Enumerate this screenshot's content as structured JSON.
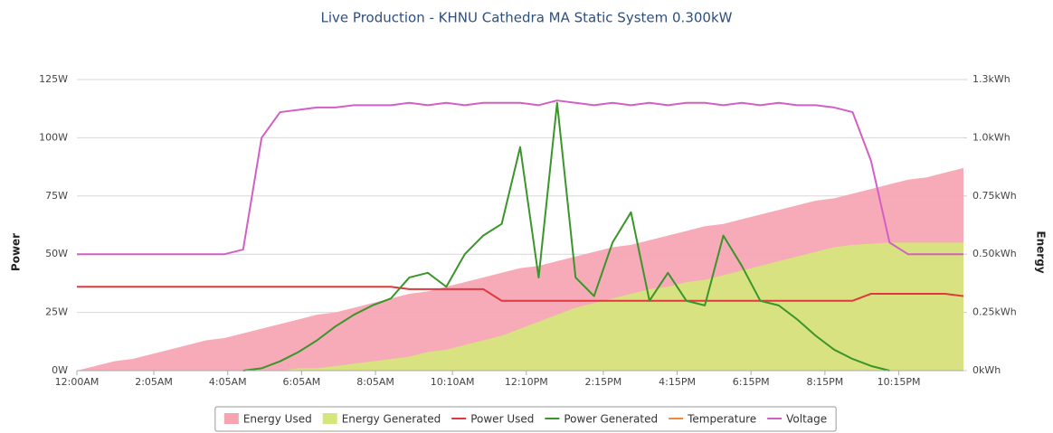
{
  "chart_data": {
    "type": "line",
    "title": "Live Production - KHNU Cathedra MA Static System 0.300kW",
    "y_label": "Power",
    "y2_label": "Energy",
    "x": [
      0,
      30,
      60,
      90,
      120,
      150,
      180,
      210,
      240,
      270,
      300,
      330,
      360,
      390,
      420,
      450,
      480,
      510,
      540,
      570,
      600,
      630,
      660,
      690,
      720,
      750,
      780,
      810,
      840,
      870,
      900,
      930,
      960,
      990,
      1020,
      1050,
      1080,
      1110,
      1140,
      1170,
      1200,
      1230,
      1260,
      1290,
      1320,
      1350,
      1380,
      1410,
      1440
    ],
    "xlim": [
      0,
      1440
    ],
    "xticks": [
      {
        "value": 0,
        "label": "12:00AM"
      },
      {
        "value": 125,
        "label": "2:05AM"
      },
      {
        "value": 245,
        "label": "4:05AM"
      },
      {
        "value": 365,
        "label": "6:05AM"
      },
      {
        "value": 485,
        "label": "8:05AM"
      },
      {
        "value": 610,
        "label": "10:10AM"
      },
      {
        "value": 730,
        "label": "12:10PM"
      },
      {
        "value": 855,
        "label": "2:15PM"
      },
      {
        "value": 975,
        "label": "4:15PM"
      },
      {
        "value": 1095,
        "label": "6:15PM"
      },
      {
        "value": 1215,
        "label": "8:15PM"
      },
      {
        "value": 1335,
        "label": "10:15PM"
      }
    ],
    "ylim": [
      0,
      125
    ],
    "yticks": [
      {
        "value": 0,
        "label": "0W"
      },
      {
        "value": 25,
        "label": "25W"
      },
      {
        "value": 50,
        "label": "50W"
      },
      {
        "value": 75,
        "label": "75W"
      },
      {
        "value": 100,
        "label": "100W"
      },
      {
        "value": 125,
        "label": "125W"
      }
    ],
    "y2lim": [
      0,
      1.25
    ],
    "y2ticks": [
      {
        "value": 0,
        "label": "0kWh"
      },
      {
        "value": 0.25,
        "label": "0.25kWh"
      },
      {
        "value": 0.5,
        "label": "0.50kWh"
      },
      {
        "value": 0.75,
        "label": "0.75kWh"
      },
      {
        "value": 1,
        "label": "1.0kWh"
      },
      {
        "value": 1.25,
        "label": "1.3kWh"
      }
    ],
    "grid": true,
    "legend": "bottom",
    "series": [
      {
        "name": "Energy Used",
        "type": "area",
        "axis": "y2",
        "color": "#f6a3b2",
        "values": [
          0,
          0.02,
          0.04,
          0.05,
          0.07,
          0.09,
          0.11,
          0.13,
          0.14,
          0.16,
          0.18,
          0.2,
          0.22,
          0.24,
          0.25,
          0.27,
          0.29,
          0.31,
          0.33,
          0.34,
          0.36,
          0.38,
          0.4,
          0.42,
          0.44,
          0.45,
          0.47,
          0.49,
          0.51,
          0.53,
          0.54,
          0.56,
          0.58,
          0.6,
          0.62,
          0.63,
          0.65,
          0.67,
          0.69,
          0.71,
          0.73,
          0.74,
          0.76,
          0.78,
          0.8,
          0.82,
          0.83,
          0.85,
          0.87
        ]
      },
      {
        "name": "Energy Generated",
        "type": "area",
        "axis": "y2",
        "color": "#d5e77c",
        "values": [
          0,
          0,
          0,
          0,
          0,
          0,
          0,
          0,
          0,
          0,
          0,
          0,
          0.01,
          0.01,
          0.02,
          0.03,
          0.04,
          0.05,
          0.06,
          0.08,
          0.09,
          0.11,
          0.13,
          0.15,
          0.18,
          0.21,
          0.24,
          0.27,
          0.29,
          0.31,
          0.33,
          0.35,
          0.36,
          0.38,
          0.39,
          0.41,
          0.43,
          0.45,
          0.47,
          0.49,
          0.51,
          0.53,
          0.54,
          0.545,
          0.55,
          0.55,
          0.55,
          0.55,
          0.55
        ]
      },
      {
        "name": "Power Used",
        "type": "line",
        "color": "#e0383c",
        "values": [
          36,
          36,
          36,
          36,
          36,
          36,
          36,
          36,
          36,
          36,
          36,
          36,
          36,
          36,
          36,
          36,
          36,
          36,
          35,
          35,
          35,
          35,
          35,
          30,
          30,
          30,
          30,
          30,
          30,
          30,
          30,
          30,
          30,
          30,
          30,
          30,
          30,
          30,
          30,
          30,
          30,
          30,
          30,
          33,
          33,
          33,
          33,
          33,
          32
        ]
      },
      {
        "name": "Power Generated",
        "type": "line",
        "color": "#3a952b",
        "values": [
          null,
          null,
          null,
          null,
          null,
          null,
          null,
          null,
          null,
          0,
          1,
          4,
          8,
          13,
          19,
          24,
          28,
          31,
          40,
          42,
          36,
          50,
          58,
          63,
          96,
          40,
          115,
          40,
          32,
          55,
          68,
          30,
          42,
          30,
          28,
          58,
          45,
          30,
          28,
          22,
          15,
          9,
          5,
          2,
          0,
          null,
          null,
          null,
          null
        ]
      },
      {
        "name": "Temperature",
        "type": "line",
        "color": "#f08a3a",
        "values": [
          null,
          null,
          null,
          null,
          null,
          null,
          null,
          null,
          null,
          null,
          null,
          null,
          null,
          null,
          null,
          null,
          null,
          null,
          null,
          null,
          null,
          null,
          null,
          null,
          null,
          null,
          null,
          null,
          null,
          null,
          null,
          null,
          null,
          null,
          null,
          null,
          null,
          null,
          null,
          null,
          null,
          null,
          null,
          null,
          null,
          null,
          null,
          null,
          null
        ]
      },
      {
        "name": "Voltage",
        "type": "line",
        "color": "#d45fc4",
        "values": [
          50,
          50,
          50,
          50,
          50,
          50,
          50,
          50,
          50,
          52,
          100,
          111,
          112,
          113,
          113,
          114,
          114,
          114,
          115,
          114,
          115,
          114,
          115,
          115,
          115,
          114,
          116,
          115,
          114,
          115,
          114,
          115,
          114,
          115,
          115,
          114,
          115,
          114,
          115,
          114,
          114,
          113,
          111,
          90,
          55,
          50,
          50,
          50,
          50
        ]
      }
    ]
  }
}
